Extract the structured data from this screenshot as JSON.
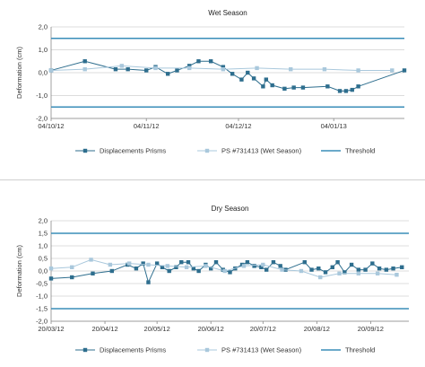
{
  "chart_data": [
    {
      "type": "line",
      "title": "Wet Season",
      "ylabel": "Deformation (cm)",
      "xlabel": "",
      "ylim": [
        -2.0,
        2.0
      ],
      "yticks": [
        "2,0",
        "1,0",
        "0,0",
        "-1,0",
        "-2,0"
      ],
      "yticks_values": [
        2,
        1,
        0,
        -1,
        -2
      ],
      "xlim": [
        "2012-10-04",
        "2013-01-27"
      ],
      "xticks": [
        {
          "label": "04/10/12",
          "date": "2012-10-04"
        },
        {
          "label": "04/11/12",
          "date": "2012-11-04"
        },
        {
          "label": "04/12/12",
          "date": "2012-12-04"
        },
        {
          "label": "04/01/13",
          "date": "2013-01-04"
        }
      ],
      "grid": "horizontal",
      "threshold": [
        1.5,
        -1.5
      ],
      "colors": {
        "prisms": "#2e6e8e",
        "ps": "#a9c8dc",
        "threshold": "#3a8db8",
        "grid": "#d0d0d0"
      },
      "legend": {
        "position": "bottom",
        "prisms": "Displacements Prisms",
        "ps": "PS #731413 (Wet Season)",
        "threshold": "Threshold"
      },
      "series": [
        {
          "key": "prisms",
          "x": [
            "2012-10-04",
            "2012-10-15",
            "2012-10-25",
            "2012-10-29",
            "2012-11-04",
            "2012-11-07",
            "2012-11-11",
            "2012-11-14",
            "2012-11-18",
            "2012-11-21",
            "2012-11-25",
            "2012-11-29",
            "2012-12-02",
            "2012-12-05",
            "2012-12-07",
            "2012-12-09",
            "2012-12-12",
            "2012-12-13",
            "2012-12-15",
            "2012-12-19",
            "2012-12-22",
            "2012-12-25",
            "2013-01-02",
            "2013-01-06",
            "2013-01-08",
            "2013-01-10",
            "2013-01-12",
            "2013-01-27"
          ],
          "values": [
            0.1,
            0.5,
            0.15,
            0.15,
            0.1,
            0.25,
            -0.05,
            0.1,
            0.3,
            0.5,
            0.5,
            0.25,
            -0.05,
            -0.3,
            0.0,
            -0.25,
            -0.6,
            -0.3,
            -0.55,
            -0.7,
            -0.65,
            -0.65,
            -0.6,
            -0.8,
            -0.8,
            -0.75,
            -0.6,
            0.1
          ]
        },
        {
          "key": "ps",
          "x": [
            "2012-10-04",
            "2012-10-15",
            "2012-10-27",
            "2012-11-07",
            "2012-11-18",
            "2012-11-29",
            "2012-12-10",
            "2012-12-21",
            "2013-01-01",
            "2013-01-12",
            "2013-01-23"
          ],
          "values": [
            0.1,
            0.15,
            0.3,
            0.2,
            0.2,
            0.15,
            0.2,
            0.15,
            0.15,
            0.1,
            0.1
          ]
        }
      ]
    },
    {
      "type": "line",
      "title": "Dry Season",
      "ylabel": "Deformation (cm)",
      "xlabel": "",
      "ylim": [
        -2.0,
        2.0
      ],
      "yticks": [
        "2,0",
        "1,5",
        "1,0",
        "0,5",
        "0,0",
        "-0,5",
        "-1,0",
        "-1,5",
        "-2,0"
      ],
      "yticks_values": [
        2,
        1.5,
        1,
        0.5,
        0,
        -0.5,
        -1,
        -1.5,
        -2
      ],
      "xlim": [
        "2012-03-20",
        "2012-10-12"
      ],
      "xticks": [
        {
          "label": "20/03/12",
          "date": "2012-03-20"
        },
        {
          "label": "20/04/12",
          "date": "2012-04-20"
        },
        {
          "label": "20/05/12",
          "date": "2012-05-20"
        },
        {
          "label": "20/06/12",
          "date": "2012-06-20"
        },
        {
          "label": "20/07/12",
          "date": "2012-07-20"
        },
        {
          "label": "20/08/12",
          "date": "2012-08-20"
        },
        {
          "label": "20/09/12",
          "date": "2012-09-20"
        }
      ],
      "grid": "horizontal",
      "threshold": [
        1.5,
        -1.5
      ],
      "colors": {
        "prisms": "#2e6e8e",
        "ps": "#a9c8dc",
        "threshold": "#3a8db8",
        "grid": "#d0d0d0"
      },
      "legend": {
        "position": "bottom",
        "prisms": "Displacements Prisms",
        "ps": "PS #731413 (Wet Season)",
        "threshold": "Threshold"
      },
      "series": [
        {
          "key": "prisms",
          "x": [
            "2012-03-20",
            "2012-04-01",
            "2012-04-13",
            "2012-04-24",
            "2012-05-03",
            "2012-05-08",
            "2012-05-12",
            "2012-05-15",
            "2012-05-20",
            "2012-05-23",
            "2012-05-27",
            "2012-05-31",
            "2012-06-03",
            "2012-06-07",
            "2012-06-10",
            "2012-06-13",
            "2012-06-17",
            "2012-06-20",
            "2012-06-23",
            "2012-06-27",
            "2012-07-01",
            "2012-07-04",
            "2012-07-08",
            "2012-07-11",
            "2012-07-15",
            "2012-07-19",
            "2012-07-22",
            "2012-07-26",
            "2012-07-30",
            "2012-08-02",
            "2012-08-13",
            "2012-08-17",
            "2012-08-21",
            "2012-08-25",
            "2012-08-29",
            "2012-09-01",
            "2012-09-05",
            "2012-09-09",
            "2012-09-13",
            "2012-09-17",
            "2012-09-21",
            "2012-09-25",
            "2012-09-29",
            "2012-10-03",
            "2012-10-08"
          ],
          "values": [
            -0.3,
            -0.25,
            -0.1,
            0.0,
            0.25,
            0.1,
            0.3,
            -0.45,
            0.3,
            0.15,
            0.0,
            0.15,
            0.35,
            0.35,
            0.1,
            0.0,
            0.25,
            0.1,
            0.35,
            0.05,
            -0.05,
            0.1,
            0.25,
            0.35,
            0.2,
            0.15,
            0.05,
            0.35,
            0.2,
            0.05,
            0.35,
            0.05,
            0.1,
            -0.05,
            0.15,
            0.35,
            -0.05,
            0.25,
            0.05,
            0.05,
            0.3,
            0.1,
            0.05,
            0.1,
            0.15
          ]
        },
        {
          "key": "ps",
          "x": [
            "2012-03-20",
            "2012-04-01",
            "2012-04-12",
            "2012-04-23",
            "2012-05-04",
            "2012-05-15",
            "2012-05-26",
            "2012-06-06",
            "2012-06-17",
            "2012-06-28",
            "2012-07-09",
            "2012-07-20",
            "2012-07-31",
            "2012-08-11",
            "2012-08-22",
            "2012-09-02",
            "2012-09-13",
            "2012-09-24",
            "2012-10-05"
          ],
          "values": [
            0.1,
            0.15,
            0.45,
            0.25,
            0.3,
            0.25,
            0.2,
            0.15,
            0.2,
            0.0,
            0.2,
            0.25,
            0.05,
            0.0,
            -0.25,
            -0.1,
            -0.1,
            -0.1,
            -0.15
          ]
        }
      ]
    }
  ]
}
